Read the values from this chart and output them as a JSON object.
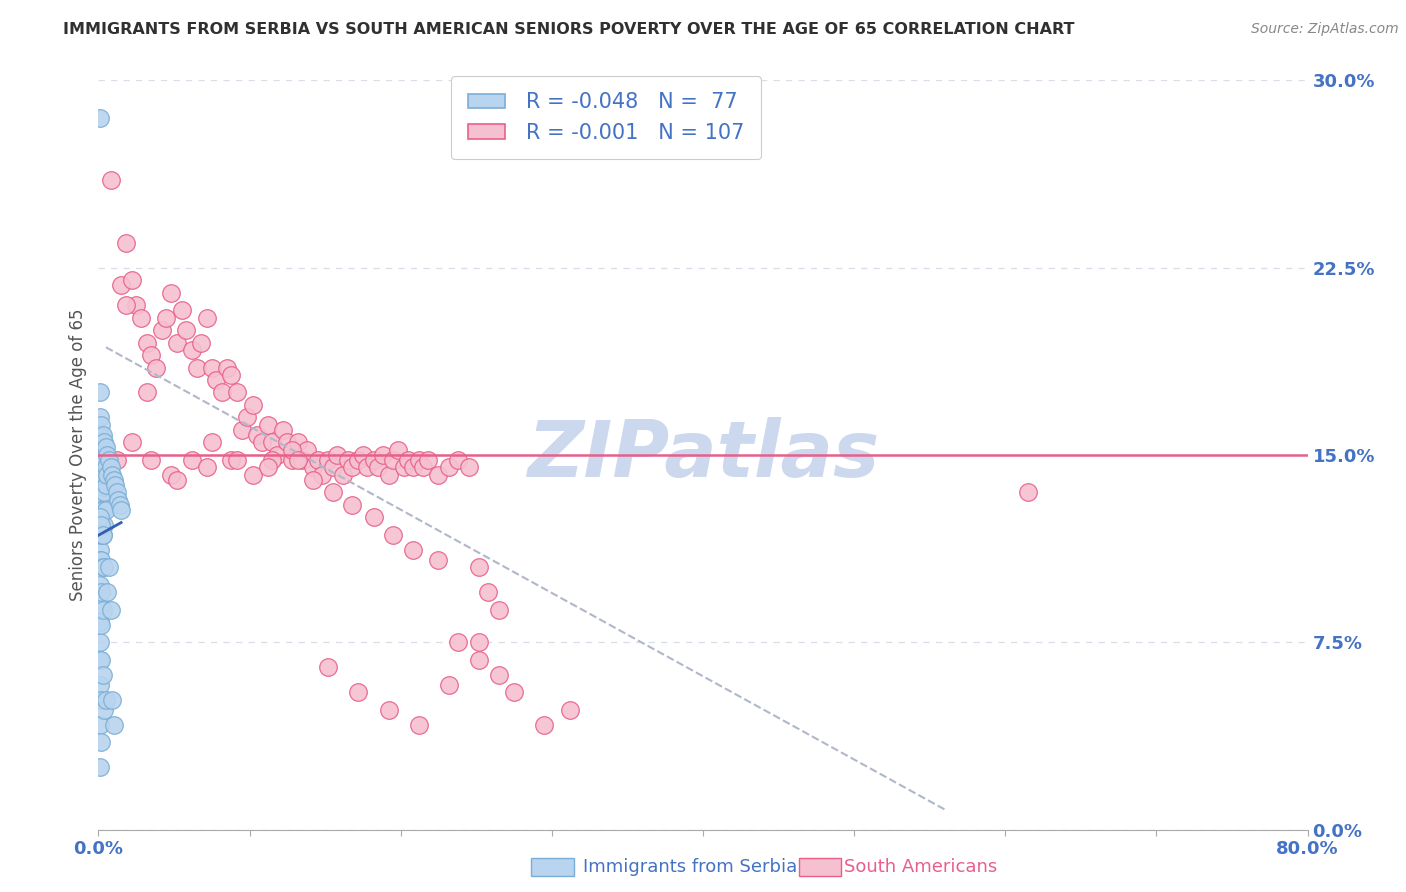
{
  "title": "IMMIGRANTS FROM SERBIA VS SOUTH AMERICAN SENIORS POVERTY OVER THE AGE OF 65 CORRELATION CHART",
  "source": "Source: ZipAtlas.com",
  "ylabel": "Seniors Poverty Over the Age of 65",
  "xlabel_left": "Immigrants from Serbia",
  "xlabel_right": "South Americans",
  "xlim": [
    0,
    0.8
  ],
  "ylim": [
    0,
    0.3
  ],
  "serbia_R": -0.048,
  "serbia_N": 77,
  "south_am_R": -0.001,
  "south_am_N": 107,
  "horizontal_line_y": 0.15,
  "horizontal_line_color": "#e8608a",
  "serbia_color": "#b8d4ee",
  "serbia_edge_color": "#7aaed6",
  "south_am_color": "#f5c0d0",
  "south_am_edge_color": "#e8608a",
  "serbia_line_color": "#3060b0",
  "dashed_line_color": "#b0b8c8",
  "watermark": "ZIPatlas",
  "watermark_color": "#ccd8ee",
  "title_color": "#303030",
  "axis_label_color": "#4472c4",
  "tick_label_color": "#4472c4",
  "grid_color": "#d8dde8",
  "serbia_scatter_x": [
    0.001,
    0.001,
    0.001,
    0.001,
    0.001,
    0.001,
    0.001,
    0.001,
    0.001,
    0.001,
    0.001,
    0.001,
    0.001,
    0.001,
    0.001,
    0.001,
    0.001,
    0.001,
    0.001,
    0.001,
    0.002,
    0.002,
    0.002,
    0.002,
    0.002,
    0.002,
    0.002,
    0.002,
    0.002,
    0.002,
    0.002,
    0.002,
    0.002,
    0.002,
    0.002,
    0.003,
    0.003,
    0.003,
    0.003,
    0.003,
    0.003,
    0.003,
    0.003,
    0.003,
    0.003,
    0.004,
    0.004,
    0.004,
    0.004,
    0.004,
    0.004,
    0.004,
    0.005,
    0.005,
    0.005,
    0.005,
    0.005,
    0.006,
    0.006,
    0.006,
    0.007,
    0.007,
    0.008,
    0.008,
    0.009,
    0.009,
    0.01,
    0.01,
    0.011,
    0.012,
    0.013,
    0.014,
    0.015,
    0.001,
    0.002,
    0.003,
    0.001
  ],
  "serbia_scatter_y": [
    0.285,
    0.175,
    0.165,
    0.155,
    0.148,
    0.143,
    0.138,
    0.132,
    0.128,
    0.122,
    0.118,
    0.112,
    0.108,
    0.098,
    0.09,
    0.083,
    0.075,
    0.068,
    0.058,
    0.042,
    0.162,
    0.157,
    0.152,
    0.147,
    0.143,
    0.138,
    0.133,
    0.128,
    0.118,
    0.108,
    0.095,
    0.082,
    0.068,
    0.052,
    0.035,
    0.158,
    0.152,
    0.147,
    0.142,
    0.137,
    0.128,
    0.118,
    0.105,
    0.088,
    0.062,
    0.155,
    0.148,
    0.142,
    0.135,
    0.122,
    0.105,
    0.048,
    0.153,
    0.145,
    0.138,
    0.128,
    0.052,
    0.15,
    0.142,
    0.095,
    0.148,
    0.105,
    0.145,
    0.088,
    0.142,
    0.052,
    0.14,
    0.042,
    0.138,
    0.135,
    0.132,
    0.13,
    0.128,
    0.125,
    0.122,
    0.118,
    0.025
  ],
  "south_am_scatter_x": [
    0.008,
    0.015,
    0.018,
    0.022,
    0.025,
    0.028,
    0.032,
    0.035,
    0.038,
    0.042,
    0.045,
    0.048,
    0.052,
    0.055,
    0.058,
    0.062,
    0.065,
    0.068,
    0.072,
    0.075,
    0.078,
    0.082,
    0.085,
    0.088,
    0.092,
    0.095,
    0.098,
    0.102,
    0.105,
    0.108,
    0.112,
    0.115,
    0.118,
    0.122,
    0.125,
    0.128,
    0.132,
    0.135,
    0.138,
    0.142,
    0.145,
    0.148,
    0.152,
    0.155,
    0.158,
    0.162,
    0.165,
    0.168,
    0.172,
    0.175,
    0.178,
    0.182,
    0.185,
    0.188,
    0.192,
    0.195,
    0.198,
    0.202,
    0.205,
    0.208,
    0.212,
    0.215,
    0.218,
    0.225,
    0.232,
    0.238,
    0.245,
    0.252,
    0.258,
    0.265,
    0.012,
    0.022,
    0.035,
    0.048,
    0.062,
    0.075,
    0.088,
    0.102,
    0.115,
    0.128,
    0.142,
    0.155,
    0.168,
    0.182,
    0.195,
    0.208,
    0.225,
    0.238,
    0.252,
    0.265,
    0.018,
    0.032,
    0.052,
    0.072,
    0.092,
    0.112,
    0.132,
    0.152,
    0.172,
    0.192,
    0.212,
    0.232,
    0.252,
    0.275,
    0.295,
    0.312,
    0.615
  ],
  "south_am_scatter_y": [
    0.26,
    0.218,
    0.235,
    0.22,
    0.21,
    0.205,
    0.195,
    0.19,
    0.185,
    0.2,
    0.205,
    0.215,
    0.195,
    0.208,
    0.2,
    0.192,
    0.185,
    0.195,
    0.205,
    0.185,
    0.18,
    0.175,
    0.185,
    0.182,
    0.175,
    0.16,
    0.165,
    0.17,
    0.158,
    0.155,
    0.162,
    0.155,
    0.15,
    0.16,
    0.155,
    0.148,
    0.155,
    0.148,
    0.152,
    0.145,
    0.148,
    0.142,
    0.148,
    0.145,
    0.15,
    0.142,
    0.148,
    0.145,
    0.148,
    0.15,
    0.145,
    0.148,
    0.145,
    0.15,
    0.142,
    0.148,
    0.152,
    0.145,
    0.148,
    0.145,
    0.148,
    0.145,
    0.148,
    0.142,
    0.145,
    0.148,
    0.145,
    0.105,
    0.095,
    0.088,
    0.148,
    0.155,
    0.148,
    0.142,
    0.148,
    0.155,
    0.148,
    0.142,
    0.148,
    0.152,
    0.14,
    0.135,
    0.13,
    0.125,
    0.118,
    0.112,
    0.108,
    0.075,
    0.068,
    0.062,
    0.21,
    0.175,
    0.14,
    0.145,
    0.148,
    0.145,
    0.148,
    0.065,
    0.055,
    0.048,
    0.042,
    0.058,
    0.075,
    0.055,
    0.042,
    0.048,
    0.135
  ]
}
